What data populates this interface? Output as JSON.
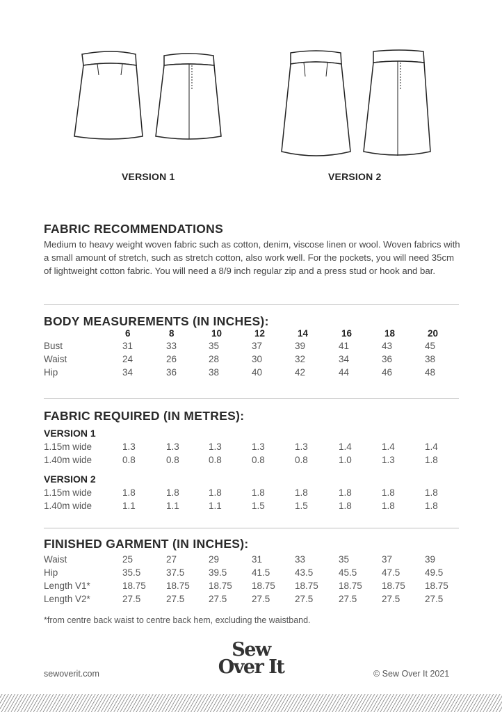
{
  "illustrations": {
    "version1_label": "VERSION 1",
    "version2_label": "VERSION 2"
  },
  "fabric_recommendations": {
    "title": "FABRIC RECOMMENDATIONS",
    "text": "Medium to heavy weight woven fabric such as cotton, denim, viscose linen or wool. Woven fabrics with a small amount of stretch, such as stretch cotton, also work well. For the pockets, you will need 35cm of lightweight cotton fabric. You will need a 8/9 inch regular zip and a press stud or hook and bar."
  },
  "sizes": [
    "6",
    "8",
    "10",
    "12",
    "14",
    "16",
    "18",
    "20"
  ],
  "body_measurements": {
    "title": "BODY MEASUREMENTS (IN INCHES):",
    "rows": [
      {
        "label": "Bust",
        "values": [
          "31",
          "33",
          "35",
          "37",
          "39",
          "41",
          "43",
          "45"
        ]
      },
      {
        "label": "Waist",
        "values": [
          "24",
          "26",
          "28",
          "30",
          "32",
          "34",
          "36",
          "38"
        ]
      },
      {
        "label": "Hip",
        "values": [
          "34",
          "36",
          "38",
          "40",
          "42",
          "44",
          "46",
          "48"
        ]
      }
    ]
  },
  "fabric_required": {
    "title": "FABRIC REQUIRED (IN METRES):",
    "groups": [
      {
        "label": "VERSION 1",
        "rows": [
          {
            "label": "1.15m wide",
            "values": [
              "1.3",
              "1.3",
              "1.3",
              "1.3",
              "1.3",
              "1.4",
              "1.4",
              "1.4"
            ]
          },
          {
            "label": "1.40m wide",
            "values": [
              "0.8",
              "0.8",
              "0.8",
              "0.8",
              "0.8",
              "1.0",
              "1.3",
              "1.8"
            ]
          }
        ]
      },
      {
        "label": "VERSION 2",
        "rows": [
          {
            "label": "1.15m wide",
            "values": [
              "1.8",
              "1.8",
              "1.8",
              "1.8",
              "1.8",
              "1.8",
              "1.8",
              "1.8"
            ]
          },
          {
            "label": "1.40m wide",
            "values": [
              "1.1",
              "1.1",
              "1.1",
              "1.5",
              "1.5",
              "1.8",
              "1.8",
              "1.8"
            ]
          }
        ]
      }
    ]
  },
  "finished_garment": {
    "title": "FINISHED GARMENT (IN INCHES):",
    "rows": [
      {
        "label": "Waist",
        "values": [
          "25",
          "27",
          "29",
          "31",
          "33",
          "35",
          "37",
          "39"
        ]
      },
      {
        "label": "Hip",
        "values": [
          "35.5",
          "37.5",
          "39.5",
          "41.5",
          "43.5",
          "45.5",
          "47.5",
          "49.5"
        ]
      },
      {
        "label": "Length V1*",
        "values": [
          "18.75",
          "18.75",
          "18.75",
          "18.75",
          "18.75",
          "18.75",
          "18.75",
          "18.75"
        ]
      },
      {
        "label": "Length V2*",
        "values": [
          "27.5",
          "27.5",
          "27.5",
          "27.5",
          "27.5",
          "27.5",
          "27.5",
          "27.5"
        ]
      }
    ],
    "footnote": "*from centre back waist  to centre back hem, excluding the waistband."
  },
  "footer": {
    "website": "sewoverit.com",
    "logo_line1": "Sew",
    "logo_line2": "Over It",
    "copyright": "© Sew Over It 2021"
  }
}
